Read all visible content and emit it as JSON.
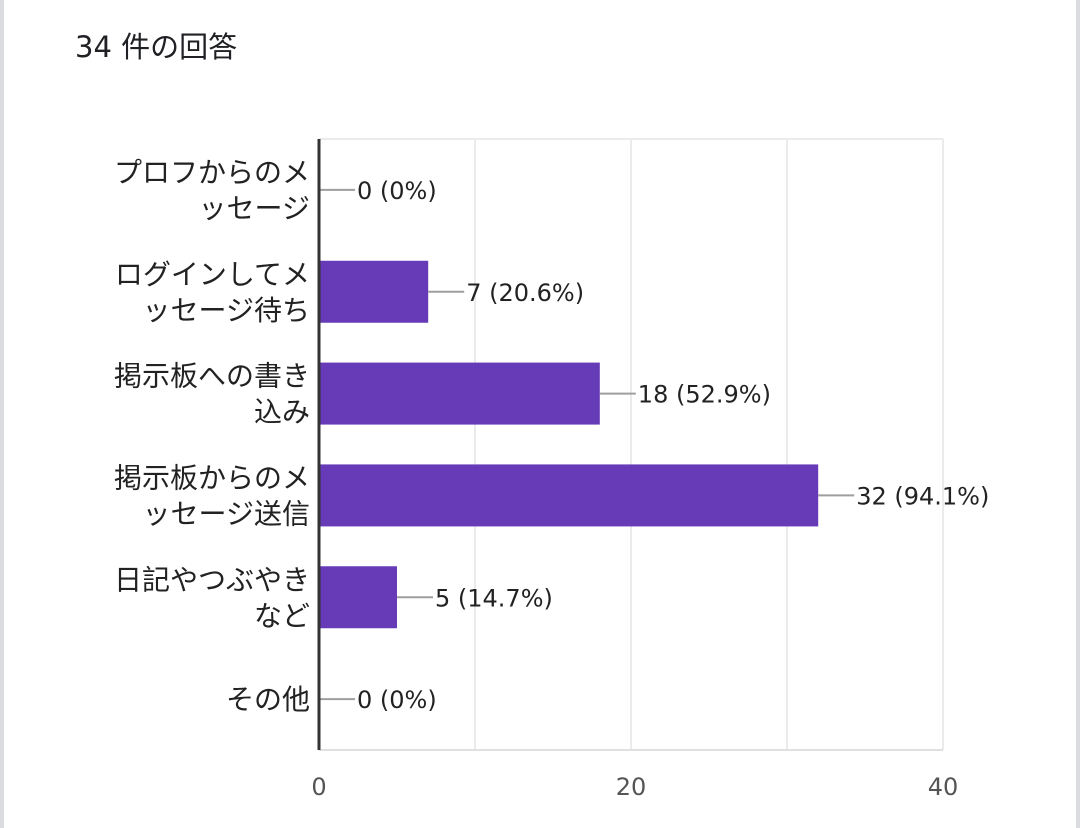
{
  "header": {
    "title": "34 件の回答"
  },
  "chart_data": {
    "type": "bar",
    "orientation": "horizontal",
    "categories": [
      [
        "プロフからのメ",
        "ッセージ"
      ],
      [
        "ログインしてメ",
        "ッセージ待ち"
      ],
      [
        "掲示板への書き",
        "込み"
      ],
      [
        "掲示板からのメ",
        "ッセージ送信"
      ],
      [
        "日記やつぶやき",
        "など"
      ],
      [
        "その他"
      ]
    ],
    "values": [
      0,
      7,
      18,
      32,
      5,
      0
    ],
    "data_labels": [
      "0 (0%)",
      "7 (20.6%)",
      "18 (52.9%)",
      "32 (94.1%)",
      "5 (14.7%)",
      "0 (0%)"
    ],
    "xlim": [
      0,
      40
    ],
    "xticks": [
      0,
      20,
      40
    ],
    "tick_labels": [
      "0",
      "20",
      "40"
    ],
    "gridlines": [
      0,
      10,
      20,
      30,
      40
    ],
    "grid": true,
    "bar_color": "#673ab7",
    "title": "34 件の回答",
    "xlabel": "",
    "ylabel": ""
  }
}
